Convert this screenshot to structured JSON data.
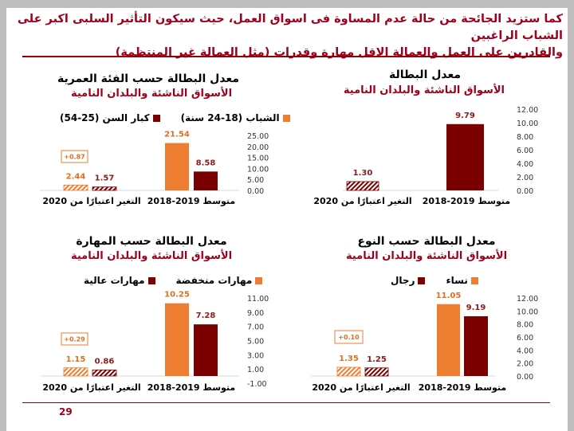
{
  "header": {
    "line1": "كما ستزيد الجائحة من حالة عدم المساوة  فى اسواق العمل، حيث سيكون التأثير السلبى اكبر على الشباب الراغبين",
    "line2": "والقادرين على العمل والعمالة الاقل مهارة وقدرات (مثل العمالة غير المنتظمة)"
  },
  "page_number": "29",
  "colors": {
    "orange": "#ed7d31",
    "maroon": "#7b0000",
    "title_red": "#a0001c"
  },
  "chart_data": [
    {
      "id": "total",
      "type": "bar",
      "title": "معدل البطالة",
      "subtitle": "الأسواق الناشئة والبلدان النامية",
      "categories": [
        "متوسط 2019-2018",
        "التغير اعتبارًا من 2020"
      ],
      "series": [
        {
          "name": "",
          "color": "maroon",
          "values": [
            9.79,
            1.3
          ],
          "labels": [
            "9.79",
            "1.30"
          ]
        }
      ],
      "ylim": [
        0,
        12
      ],
      "ticks": [
        "12.00",
        "10.00",
        "8.00",
        "6.00",
        "4.00",
        "2.00",
        "0.00"
      ],
      "tick_values": [
        12,
        10,
        8,
        6,
        4,
        2,
        0
      ],
      "annotation": null
    },
    {
      "id": "age",
      "type": "bar",
      "title": "معدل البطالة حسب الفئة العمرية",
      "subtitle": "الأسواق الناشئة والبلدان النامية",
      "categories": [
        "متوسط 2019-2018",
        "التغير اعتبارًا من 2020"
      ],
      "series": [
        {
          "name": "الشباب (18-24 سنة)",
          "color": "orange",
          "values": [
            21.54,
            2.44
          ],
          "labels": [
            "21.54",
            "2.44"
          ]
        },
        {
          "name": "كبار السن (25-54)",
          "color": "maroon",
          "values": [
            8.58,
            1.57
          ],
          "labels": [
            "8.58",
            "1.57"
          ]
        }
      ],
      "ylim": [
        0,
        25
      ],
      "ticks": [
        "25.00",
        "20.00",
        "15.00",
        "10.00",
        "5.00",
        "0.00"
      ],
      "tick_values": [
        25,
        20,
        15,
        10,
        5,
        0
      ],
      "annotation": "+0.87"
    },
    {
      "id": "gender",
      "type": "bar",
      "title": "معدل البطالة حسب النوع",
      "subtitle": "الأسواق الناشئة والبلدان النامية",
      "categories": [
        "متوسط 2019-2018",
        "التغير اعتبارًا من 2020"
      ],
      "series": [
        {
          "name": "نساء",
          "color": "orange",
          "values": [
            11.05,
            1.35
          ],
          "labels": [
            "11.05",
            "1.35"
          ]
        },
        {
          "name": "رجال",
          "color": "maroon",
          "values": [
            9.19,
            1.25
          ],
          "labels": [
            "9.19",
            "1.25"
          ]
        }
      ],
      "ylim": [
        0,
        12
      ],
      "ticks": [
        "12.00",
        "10.00",
        "8.00",
        "6.00",
        "4.00",
        "2.00",
        "0.00"
      ],
      "tick_values": [
        12,
        10,
        8,
        6,
        4,
        2,
        0
      ],
      "annotation": "+0.10"
    },
    {
      "id": "skill",
      "type": "bar",
      "title": "معدل البطالة حسب المهارة",
      "subtitle": "الأسواق الناشئة والبلدان النامية",
      "categories": [
        "متوسط 2019-2018",
        "التغير اعتبارًا من 2020"
      ],
      "series": [
        {
          "name": "مهارات منخفضة",
          "color": "orange",
          "values": [
            10.25,
            1.15
          ],
          "labels": [
            "10.25",
            "1.15"
          ]
        },
        {
          "name": "مهارات عالية",
          "color": "maroon",
          "values": [
            7.28,
            0.86
          ],
          "labels": [
            "7.28",
            "0.86"
          ]
        }
      ],
      "ylim": [
        -1,
        11
      ],
      "ticks": [
        "11.00",
        "9.00",
        "7.00",
        "5.00",
        "3.00",
        "1.00",
        "-1.00"
      ],
      "tick_values": [
        11,
        9,
        7,
        5,
        3,
        1,
        -1
      ],
      "annotation": "+0.29"
    }
  ]
}
